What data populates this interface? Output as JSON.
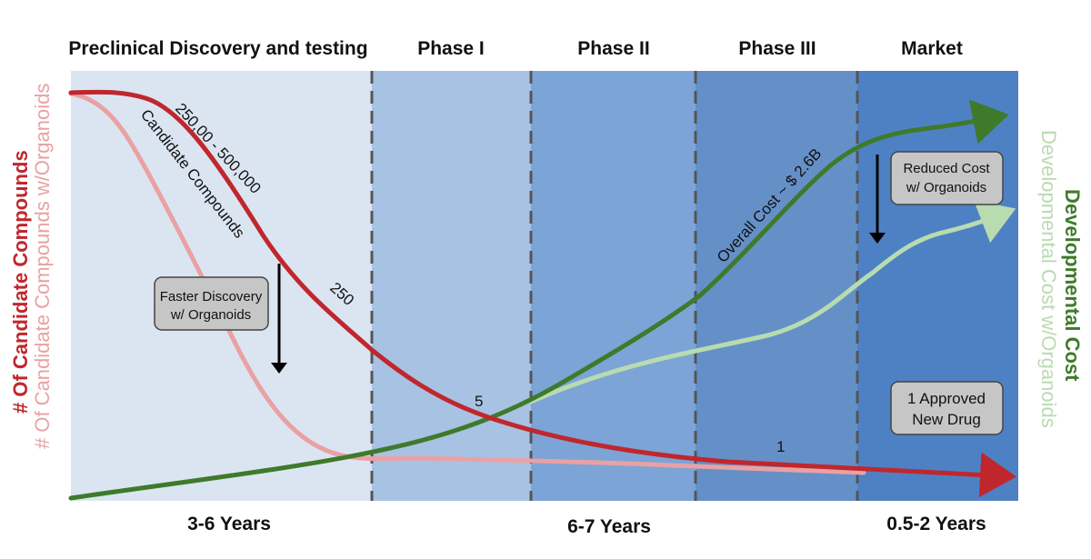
{
  "colors": {
    "preclinical_bg": "#dbe5f2",
    "phase1_bg": "#a8c2e3",
    "phase2_bg": "#7ca4d6",
    "phase3_bg": "#6590c7",
    "market_bg": "#4e81c4",
    "candidates": "#c0272d",
    "candidates_organoids": "#e9a1a3",
    "cost": "#3f7a2c",
    "cost_organoids": "#b9dbb0",
    "divider": "#555555",
    "callout_fill": "#c6c6c6",
    "callout_stroke": "#444444"
  },
  "phases": [
    "Preclinical Discovery and testing",
    "Phase I",
    "Phase II",
    "Phase III",
    "Market"
  ],
  "durations": [
    "3-6 Years",
    "6-7 Years",
    "0.5-2 Years"
  ],
  "axes": {
    "left_primary": "# Of Candidate Compounds",
    "left_secondary": "# Of Candidate Compounds w/Organoids",
    "right_primary": "Developmental Cost",
    "right_secondary": "Developmental Cost w/Organoids"
  },
  "labels": {
    "candidates_count": "250,00 - 500,000",
    "candidates_name": "Candidate Compounds",
    "count_250": "250",
    "count_5": "5",
    "count_1": "1",
    "overall_cost": "Overall Cost ~ $ 2.6B"
  },
  "callouts": {
    "faster_line1": "Faster Discovery",
    "faster_line2": "w/ Organoids",
    "reduced_line1": "Reduced Cost",
    "reduced_line2": "w/ Organoids",
    "approved_line1": "1 Approved",
    "approved_line2": "New Drug"
  }
}
